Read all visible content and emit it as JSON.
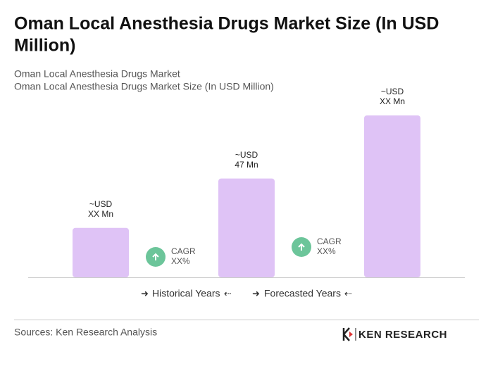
{
  "chart_data": {
    "type": "bar",
    "title": [
      "Oman Local Anesthesia Drugs Market Size (In USD",
      "Million)"
    ],
    "subtitle": [
      "Oman Local Anesthesia Drugs Market",
      "Oman Local Anesthesia Drugs Market Size (In USD Million)"
    ],
    "values": [
      23.5,
      47,
      77
    ],
    "value_labels": [
      [
        "~USD",
        "XX Mn"
      ],
      [
        "~USD",
        "47 Mn"
      ],
      [
        "~USD",
        "XX Mn"
      ]
    ],
    "color": "#dfc3f6",
    "annotations": [
      [
        "CAGR",
        "XX%"
      ],
      [
        "CAGR",
        "XX%"
      ]
    ],
    "legend": [
      "Historical Years",
      "Forecasted Years"
    ],
    "source": "Sources: Ken Research Analysis",
    "logo": "KEN RESEARCH"
  }
}
